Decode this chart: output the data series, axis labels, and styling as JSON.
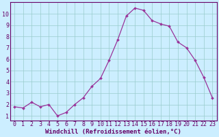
{
  "x": [
    0,
    1,
    2,
    3,
    4,
    5,
    6,
    7,
    8,
    9,
    10,
    11,
    12,
    13,
    14,
    15,
    16,
    17,
    18,
    19,
    20,
    21,
    22,
    23
  ],
  "y": [
    1.8,
    1.7,
    2.2,
    1.8,
    2.0,
    1.0,
    1.3,
    2.0,
    2.6,
    3.6,
    4.3,
    5.9,
    7.7,
    9.8,
    10.5,
    10.3,
    9.4,
    9.1,
    8.9,
    7.5,
    7.0,
    5.9,
    4.4,
    2.6
  ],
  "line_color": "#993399",
  "marker": "D",
  "marker_size": 2.0,
  "bg_color": "#cceeff",
  "grid_color": "#99cccc",
  "xlabel": "Windchill (Refroidissement éolien,°C)",
  "xlabel_color": "#660066",
  "xlabel_fontsize": 6.5,
  "tick_color": "#660066",
  "tick_fontsize": 6.0,
  "ylim": [
    0.6,
    11.0
  ],
  "xlim": [
    -0.5,
    23.5
  ],
  "yticks": [
    1,
    2,
    3,
    4,
    5,
    6,
    7,
    8,
    9,
    10
  ],
  "xticks": [
    0,
    1,
    2,
    3,
    4,
    5,
    6,
    7,
    8,
    9,
    10,
    11,
    12,
    13,
    14,
    15,
    16,
    17,
    18,
    19,
    20,
    21,
    22,
    23
  ],
  "spine_color": "#660066",
  "linewidth": 0.9
}
